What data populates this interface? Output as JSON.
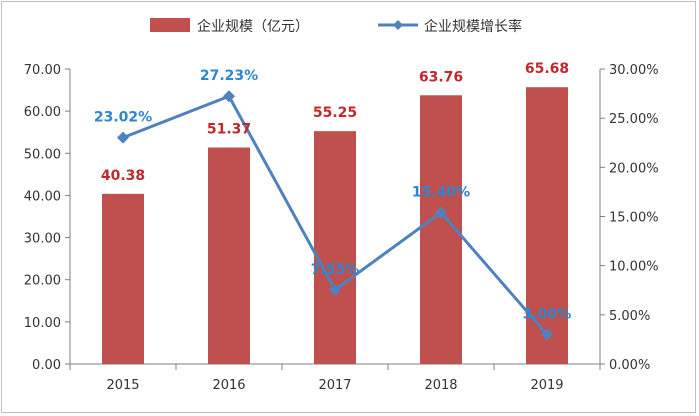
{
  "chart_data": {
    "type": "bar",
    "categories": [
      "2015",
      "2016",
      "2017",
      "2018",
      "2019"
    ],
    "series": [
      {
        "name": "企业规模（亿元）",
        "type": "bar",
        "axis": "left",
        "values": [
          40.38,
          51.37,
          55.25,
          63.76,
          65.68
        ],
        "labels": [
          "40.38",
          "51.37",
          "55.25",
          "63.76",
          "65.68"
        ],
        "color": "#c0504d"
      },
      {
        "name": "企业规模增长率",
        "type": "line",
        "axis": "right",
        "values": [
          23.02,
          27.23,
          7.55,
          15.4,
          3.0
        ],
        "labels": [
          "23.02%",
          "27.23%",
          "7.55%",
          "15.40%",
          "3.00%"
        ],
        "color": "#4f81bd"
      }
    ],
    "left_axis": {
      "ylim": [
        0,
        70
      ],
      "ticks": [
        "0.00",
        "10.00",
        "20.00",
        "30.00",
        "40.00",
        "50.00",
        "60.00",
        "70.00"
      ]
    },
    "right_axis": {
      "ylim": [
        0,
        30
      ],
      "ticks": [
        "0.00%",
        "5.00%",
        "10.00%",
        "15.00%",
        "20.00%",
        "25.00%",
        "30.00%"
      ]
    },
    "grid": false,
    "legend": "top-center",
    "colors": {
      "bar": "#c0504d",
      "bar_label": "#c0282d",
      "line": "#4f81bd",
      "line_label": "#2e86d1",
      "axis": "#7f7f7f"
    }
  }
}
